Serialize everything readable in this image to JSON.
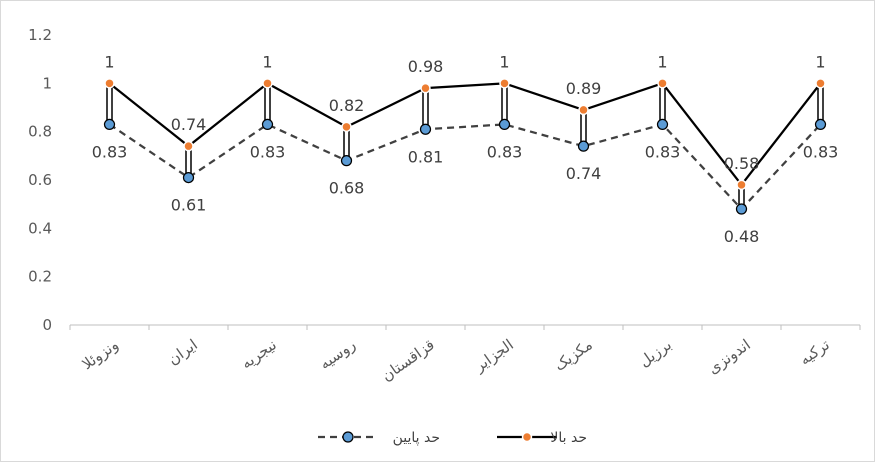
{
  "chart_data": {
    "type": "line",
    "title": "",
    "xlabel": "",
    "ylabel": "",
    "categories": [
      "ونزوئلا",
      "ایران",
      "نیجریه",
      "روسیه",
      "قزاقستان",
      "الجزایر",
      "مکزیک",
      "برزیل",
      "اندونزی",
      "ترکیه"
    ],
    "ylim": [
      0,
      1.2
    ],
    "yticks": [
      "0",
      "0.2",
      "0.4",
      "0.6",
      "0.8",
      "1",
      "1.2"
    ],
    "grid": false,
    "legend_position": "bottom",
    "series": [
      {
        "name": "حد بالا",
        "values": [
          1,
          0.74,
          1,
          0.82,
          0.98,
          1,
          0.89,
          1,
          0.58,
          1
        ],
        "labels": [
          "1",
          "0.74",
          "1",
          "0.82",
          "0.98",
          "1",
          "0.89",
          "1",
          "0.58",
          "1"
        ],
        "line_color": "#000000",
        "marker_color": "#ed7d31",
        "line_style": "solid"
      },
      {
        "name": "حد پایین",
        "values": [
          0.83,
          0.61,
          0.83,
          0.68,
          0.81,
          0.83,
          0.74,
          0.83,
          0.48,
          0.83
        ],
        "labels": [
          "0.83",
          "0.61",
          "0.83",
          "0.68",
          "0.81",
          "0.83",
          "0.74",
          "0.83",
          "0.48",
          "0.83"
        ],
        "line_color": "#404040",
        "marker_color": "#5b9bd5",
        "line_style": "dashed"
      }
    ]
  }
}
